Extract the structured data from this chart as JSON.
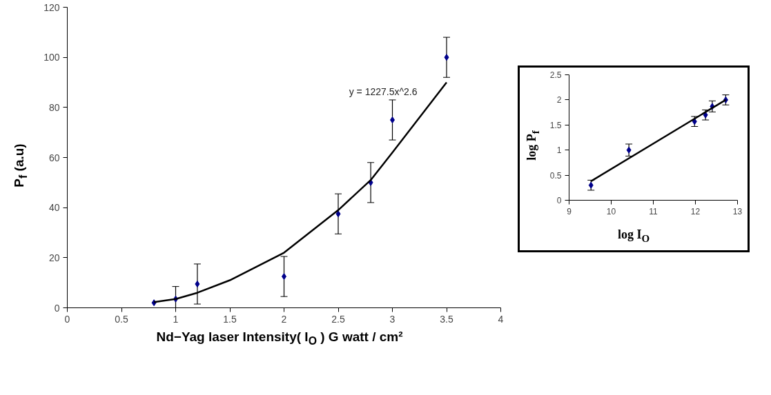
{
  "chart_data": [
    {
      "type": "scatter",
      "xlabel": "Nd−Yag laser Intensity( I$_{O}$ ) G watt / cm²",
      "ylabel": "P$_{f}$ (a.u)",
      "xlim": [
        0,
        4
      ],
      "ylim": [
        0,
        120
      ],
      "xticks": [
        0,
        0.5,
        1,
        1.5,
        2,
        2.5,
        3,
        3.5,
        4
      ],
      "yticks": [
        0,
        20,
        40,
        60,
        80,
        100,
        120
      ],
      "grid": false,
      "marker": "diamond",
      "series": [
        {
          "color": "#00008b",
          "x": [
            0.8,
            1.0,
            1.2,
            2.0,
            2.5,
            2.8,
            3.0,
            3.5
          ],
          "values": [
            2,
            3.5,
            9.5,
            12.5,
            37.5,
            50,
            75,
            100
          ],
          "errors": [
            null,
            5,
            8,
            8,
            8,
            8,
            8,
            8
          ]
        },
        {
          "type": "line",
          "marker": "none",
          "color": "#000000",
          "x": [
            0.8,
            1.0,
            1.2,
            1.5,
            2.0,
            2.5,
            2.8,
            3.0,
            3.5
          ],
          "values": [
            2.3,
            3.5,
            6,
            11,
            22,
            39,
            51,
            62,
            90
          ]
        }
      ],
      "annotations": [
        "y = 1227.5x^2.6"
      ]
    },
    {
      "type": "scatter",
      "xlabel": "log I$_{O}$",
      "ylabel": "log P$_{f}$",
      "xlim": [
        9,
        13
      ],
      "ylim": [
        0,
        2.5
      ],
      "xticks": [
        9,
        10,
        11,
        12,
        13
      ],
      "yticks": [
        0,
        0.5,
        1,
        1.5,
        2,
        2.5
      ],
      "grid": false,
      "marker": "diamond",
      "series": [
        {
          "color": "#00008b",
          "x": [
            9.52,
            10.42,
            11.98,
            12.24,
            12.4,
            12.72
          ],
          "values": [
            0.3,
            1.0,
            1.57,
            1.7,
            1.87,
            2.0
          ],
          "errors": [
            0.1,
            0.12,
            0.1,
            0.1,
            0.11,
            0.1
          ]
        },
        {
          "type": "line",
          "marker": "none",
          "color": "#000000",
          "x": [
            9.52,
            12.72
          ],
          "values": [
            0.38,
            2.0
          ]
        }
      ]
    }
  ]
}
